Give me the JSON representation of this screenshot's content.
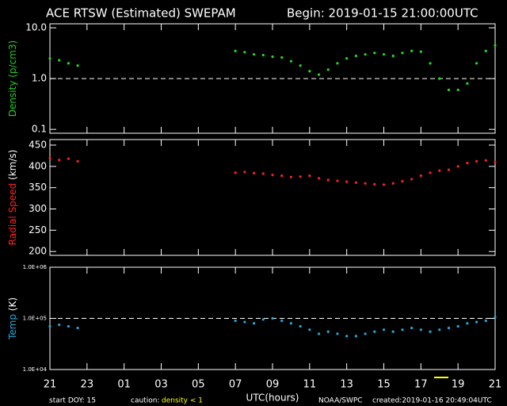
{
  "title": "ACE RTSW (Estimated) SWEPAM",
  "begin": "Begin: 2019-01-15 21:00:00UTC",
  "footer": {
    "start": "start DOY:  15",
    "caution": "caution:",
    "caution_note": "density < 1",
    "source": "NOAA/SWPC",
    "created": "created:2019-01-16 20:49:04UTC"
  },
  "chart_data": [
    {
      "type": "scatter",
      "ylabel": "Density",
      "yunit": "(p/cm3)",
      "ylabel_color": "#22cc22",
      "yunit_color": "#22cc22",
      "color": "#22dd22",
      "log": true,
      "ylim": [
        0.084,
        12
      ],
      "yticks": [
        0.1,
        {
          "value": 1,
          "label": "1.0"
        },
        {
          "value": 10,
          "label": "10.0"
        }
      ],
      "reference_line": 1,
      "x": [
        0,
        0.5,
        1,
        1.5,
        10,
        10.5,
        11,
        11.5,
        12,
        12.5,
        13,
        13.5,
        14,
        14.5,
        15,
        15.5,
        16,
        16.5,
        17,
        17.5,
        18,
        18.5,
        19,
        19.5,
        20,
        20.5,
        21,
        21.5,
        22,
        22.5,
        23,
        23.5,
        24
      ],
      "values": [
        2.5,
        2.3,
        2.0,
        1.8,
        3.5,
        3.3,
        3.0,
        2.9,
        2.7,
        2.6,
        2.2,
        1.8,
        1.4,
        1.2,
        1.5,
        2.0,
        2.5,
        2.8,
        3.0,
        3.2,
        3.0,
        2.8,
        3.2,
        3.5,
        3.4,
        2.0,
        1.0,
        0.6,
        0.6,
        0.8,
        2.0,
        3.5,
        4.5
      ]
    },
    {
      "type": "scatter",
      "ylabel": "Radial Speed",
      "yunit": "(km/s)",
      "ylabel_color": "#ff2020",
      "yunit_color": "#ffffff",
      "color": "#ff2020",
      "log": false,
      "ylim": [
        191,
        463
      ],
      "yticks": [
        200,
        250,
        300,
        350,
        400,
        450
      ],
      "x": [
        0,
        0.5,
        1,
        1.5,
        10,
        10.5,
        11,
        11.5,
        12,
        12.5,
        13,
        13.5,
        14,
        14.5,
        15,
        15.5,
        16,
        16.5,
        17,
        17.5,
        18,
        18.5,
        19,
        19.5,
        20,
        20.5,
        21,
        21.5,
        22,
        22.5,
        23,
        23.5,
        24
      ],
      "values": [
        420,
        415,
        418,
        412,
        385,
        387,
        384,
        383,
        380,
        378,
        375,
        376,
        378,
        372,
        368,
        366,
        364,
        362,
        360,
        358,
        357,
        360,
        365,
        370,
        378,
        385,
        390,
        392,
        400,
        408,
        412,
        414,
        410
      ]
    },
    {
      "type": "scatter",
      "ylabel": "Temp",
      "yunit": "(K)",
      "ylabel_color": "#22aadd",
      "yunit_color": "#ffffff",
      "color": "#22aadd",
      "log": true,
      "ylim": [
        10000,
        1000000
      ],
      "yticks": [
        {
          "value": 10000,
          "label": "1.0E+04"
        },
        {
          "value": 100000,
          "label": "1.0E+05"
        },
        {
          "value": 1000000,
          "label": "1.0E+06"
        }
      ],
      "reference_line": 100000,
      "x": [
        0,
        0.5,
        1,
        1.5,
        10,
        10.5,
        11,
        11.5,
        12,
        12.5,
        13,
        13.5,
        14,
        14.5,
        15,
        15.5,
        16,
        16.5,
        17,
        17.5,
        18,
        18.5,
        19,
        19.5,
        20,
        20.5,
        21,
        21.5,
        22,
        22.5,
        23,
        23.5,
        24
      ],
      "values": [
        70000,
        75000,
        70000,
        65000,
        90000,
        85000,
        80000,
        95000,
        100000,
        90000,
        80000,
        70000,
        60000,
        50000,
        55000,
        50000,
        45000,
        45000,
        50000,
        55000,
        60000,
        55000,
        60000,
        65000,
        60000,
        55000,
        60000,
        65000,
        70000,
        80000,
        85000,
        90000,
        105000
      ],
      "xlabel": "UTC(hours)",
      "xlim": [
        0,
        24
      ],
      "xticks": [
        {
          "value": 0,
          "label": "21"
        },
        {
          "value": 2,
          "label": "23"
        },
        {
          "value": 4,
          "label": "01"
        },
        {
          "value": 6,
          "label": "03"
        },
        {
          "value": 8,
          "label": "05"
        },
        {
          "value": 10,
          "label": "07"
        },
        {
          "value": 12,
          "label": "09"
        },
        {
          "value": 14,
          "label": "11"
        },
        {
          "value": 16,
          "label": "13"
        },
        {
          "value": 18,
          "label": "15"
        },
        {
          "value": 20,
          "label": "17"
        },
        {
          "value": 22,
          "label": "19"
        },
        {
          "value": 24,
          "label": "21"
        }
      ]
    }
  ]
}
